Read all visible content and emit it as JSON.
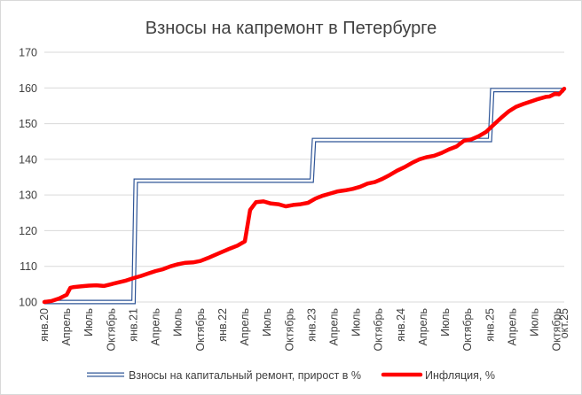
{
  "chart_data": {
    "type": "line",
    "title": "Взносы на капремонт в Петербурге",
    "xlabel": "",
    "ylabel": "",
    "ylim": [
      100,
      170
    ],
    "yticks": [
      "100",
      "110",
      "120",
      "130",
      "140",
      "150",
      "160",
      "170"
    ],
    "grid": true,
    "legend_position": "bottom",
    "categories": [
      "янв.20",
      "Апрель",
      "Июль",
      "Октябрь",
      "янв.21",
      "Апрель",
      "Июль",
      "Октябрь",
      "янв.22",
      "Апрель",
      "Июль",
      "Октябрь",
      "янв.23",
      "Апрель",
      "Июль",
      "Октябрь",
      "янв.24",
      "Апрель",
      "Июль",
      "Октябрь",
      "янв.25",
      "Апрель",
      "Июль",
      "Октябрь",
      "окт.25"
    ],
    "x_months": 70,
    "series": [
      {
        "name": "Взносы на капитальный ремонт, прирост в %",
        "style": "double-line",
        "color": "#2f5597",
        "points": [
          [
            0,
            100
          ],
          [
            12,
            100
          ],
          [
            12.3,
            134
          ],
          [
            36,
            134
          ],
          [
            36.3,
            145.4
          ],
          [
            60,
            145.4
          ],
          [
            60.3,
            159.4
          ],
          [
            70,
            159.4
          ]
        ]
      },
      {
        "name": "Инфляция, %",
        "style": "thick-line",
        "color": "#ff0000",
        "points": [
          [
            0,
            100
          ],
          [
            1,
            100.3
          ],
          [
            2,
            101
          ],
          [
            3,
            102
          ],
          [
            3.5,
            104
          ],
          [
            4,
            104.2
          ],
          [
            5,
            104.4
          ],
          [
            6,
            104.6
          ],
          [
            7,
            104.7
          ],
          [
            8,
            104.5
          ],
          [
            9,
            105
          ],
          [
            10,
            105.5
          ],
          [
            11,
            106
          ],
          [
            12,
            106.7
          ],
          [
            13,
            107.3
          ],
          [
            14,
            108
          ],
          [
            15,
            108.7
          ],
          [
            16,
            109.2
          ],
          [
            17,
            110
          ],
          [
            18,
            110.6
          ],
          [
            19,
            111
          ],
          [
            20,
            111.1
          ],
          [
            21,
            111.5
          ],
          [
            22,
            112.3
          ],
          [
            23,
            113.2
          ],
          [
            24,
            114.1
          ],
          [
            25,
            115
          ],
          [
            26,
            115.8
          ],
          [
            27,
            117
          ],
          [
            27.7,
            125.8
          ],
          [
            28.5,
            128
          ],
          [
            29.5,
            128.2
          ],
          [
            30.5,
            127.6
          ],
          [
            31.5,
            127.4
          ],
          [
            32.5,
            126.8
          ],
          [
            33.5,
            127.2
          ],
          [
            34.5,
            127.4
          ],
          [
            35.5,
            127.8
          ],
          [
            36.5,
            129
          ],
          [
            37.5,
            129.8
          ],
          [
            38.5,
            130.4
          ],
          [
            39.5,
            131
          ],
          [
            40.5,
            131.3
          ],
          [
            41.5,
            131.7
          ],
          [
            42.5,
            132.3
          ],
          [
            43.5,
            133.2
          ],
          [
            44.5,
            133.6
          ],
          [
            45.5,
            134.5
          ],
          [
            46.5,
            135.6
          ],
          [
            47.5,
            136.8
          ],
          [
            48.5,
            137.8
          ],
          [
            49.5,
            139
          ],
          [
            50.5,
            140
          ],
          [
            51.5,
            140.6
          ],
          [
            52.5,
            141
          ],
          [
            53.5,
            141.8
          ],
          [
            54.5,
            142.8
          ],
          [
            55.5,
            143.6
          ],
          [
            56.5,
            145.2
          ],
          [
            57.5,
            145.6
          ],
          [
            58.5,
            146.5
          ],
          [
            59.5,
            147.7
          ],
          [
            60.5,
            149.7
          ],
          [
            61.5,
            151.6
          ],
          [
            62.5,
            153.4
          ],
          [
            63.5,
            154.7
          ],
          [
            64.5,
            155.5
          ],
          [
            65.5,
            156.2
          ],
          [
            66.5,
            156.9
          ],
          [
            67.5,
            157.5
          ],
          [
            68,
            157.6
          ],
          [
            68.8,
            158.4
          ],
          [
            69.3,
            158.2
          ],
          [
            70,
            159.8
          ]
        ]
      }
    ]
  }
}
